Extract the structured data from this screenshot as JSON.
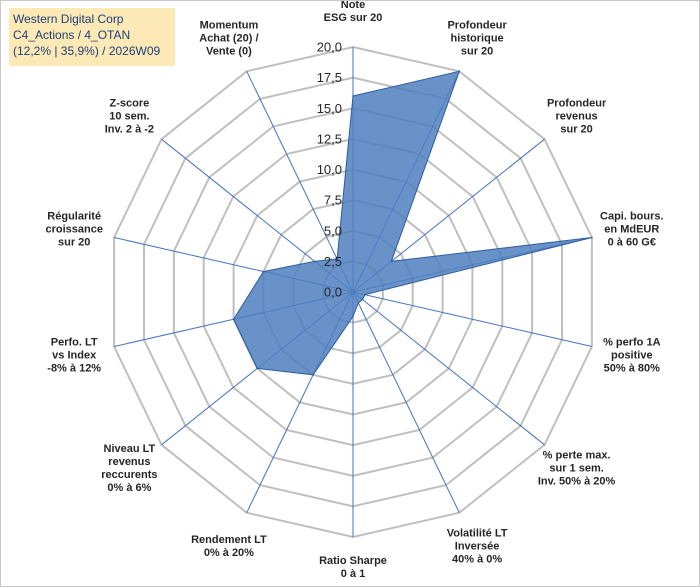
{
  "title_box": {
    "line1": "Western Digital Corp",
    "line2": "C4_Actions / 4_OTAN",
    "line3": "(12,2% | 35,9%) / 2026W09"
  },
  "colors": {
    "fill": "#4f7fbf",
    "stroke": "#2e5d9e",
    "axis": "#4472c4",
    "grid": "#bfbfbf",
    "title_bg": "#fde9b6",
    "title_text": "#1f3f7a"
  },
  "chart_data": {
    "type": "radar",
    "rmin": 0,
    "rmax": 20,
    "ticks": [
      "0,0",
      "2,5",
      "5,0",
      "7,5",
      "10,0",
      "12,5",
      "15,0",
      "17,5",
      "20,0"
    ],
    "axes": [
      {
        "label": [
          "Note",
          "ESG sur 20"
        ],
        "value": 16
      },
      {
        "label": [
          "Profondeur",
          "historique",
          "sur 20"
        ],
        "value": 20
      },
      {
        "label": [
          "Profondeur",
          "revenus",
          "sur 20"
        ],
        "value": 4
      },
      {
        "label": [
          "Capi. bours.",
          "en MdEUR",
          "0 à 60 G€"
        ],
        "value": 20
      },
      {
        "label": [
          "% perfo 1A",
          "positive",
          "50% à 80%"
        ],
        "value": 1
      },
      {
        "label": [
          "% perte max.",
          "sur 1 sem.",
          "Inv. 50% à 20%"
        ],
        "value": 1
      },
      {
        "label": [
          "Volatilité LT",
          "Inversée",
          "40% à 0%"
        ],
        "value": 1
      },
      {
        "label": [
          "Ratio Sharpe",
          "0 à 1"
        ],
        "value": 2
      },
      {
        "label": [
          "Rendement LT",
          "0% à 20%"
        ],
        "value": 7.5
      },
      {
        "label": [
          "Niveau LT",
          "revenus",
          "reccurents",
          "0% à 6%"
        ],
        "value": 10
      },
      {
        "label": [
          "Perfo. LT",
          "vs Index",
          "-8% à 12%"
        ],
        "value": 10
      },
      {
        "label": [
          "Régularité",
          "croissance",
          "sur 20"
        ],
        "value": 7.5
      },
      {
        "label": [
          "Z-score",
          "10 sem.",
          "Inv. 2 à -2"
        ],
        "value": 4
      },
      {
        "label": [
          "Momentum",
          "Achat (20) /",
          "Vente (0)"
        ],
        "value": 3
      }
    ]
  }
}
